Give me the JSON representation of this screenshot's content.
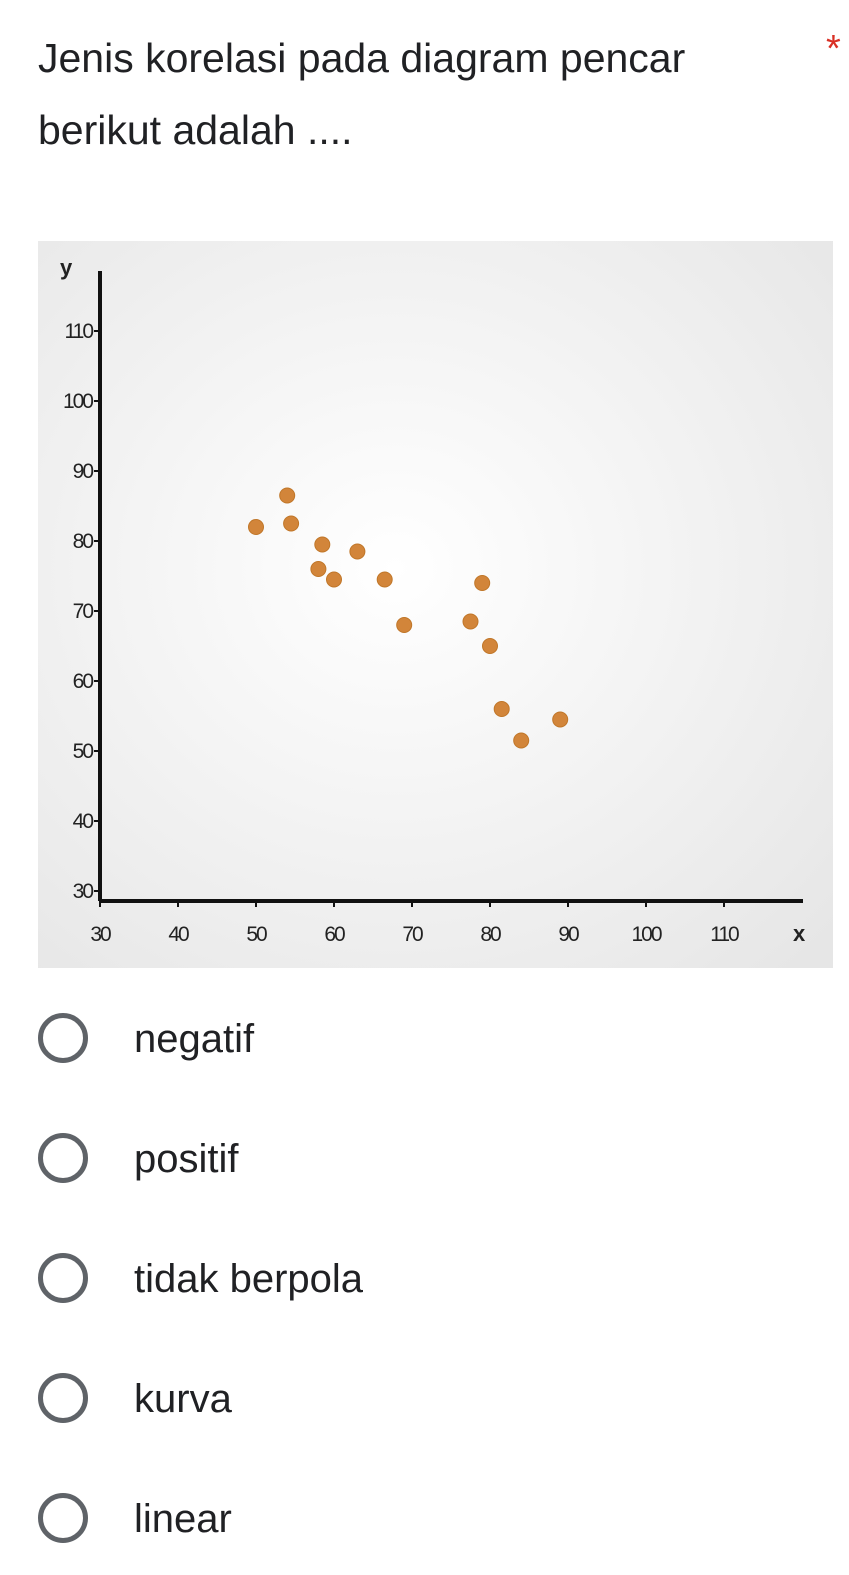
{
  "question": {
    "text": "Jenis korelasi pada diagram pencar berikut  adalah ....",
    "required_mark": "*"
  },
  "chart_data": {
    "type": "scatter",
    "title": "",
    "xlabel": "x",
    "ylabel": "y",
    "xlim": [
      30,
      120
    ],
    "ylim": [
      30,
      115
    ],
    "x_ticks": [
      30,
      40,
      50,
      60,
      70,
      80,
      90,
      100,
      110
    ],
    "y_ticks": [
      30,
      40,
      50,
      60,
      70,
      80,
      90,
      100,
      110
    ],
    "grid": false,
    "marker_color": "#d2853a",
    "plot_background": "#f2f2f2",
    "points": [
      {
        "x": 50,
        "y": 82
      },
      {
        "x": 54,
        "y": 86.5
      },
      {
        "x": 54.5,
        "y": 82.5
      },
      {
        "x": 58,
        "y": 76
      },
      {
        "x": 58.5,
        "y": 79.5
      },
      {
        "x": 60,
        "y": 74.5
      },
      {
        "x": 63,
        "y": 78.5
      },
      {
        "x": 66.5,
        "y": 74.5
      },
      {
        "x": 69,
        "y": 68
      },
      {
        "x": 77.5,
        "y": 68.5
      },
      {
        "x": 79,
        "y": 74
      },
      {
        "x": 80,
        "y": 65
      },
      {
        "x": 81.5,
        "y": 56
      },
      {
        "x": 84,
        "y": 51.5
      },
      {
        "x": 89,
        "y": 54.5
      }
    ]
  },
  "options": [
    {
      "label": "negatif"
    },
    {
      "label": "positif"
    },
    {
      "label": "tidak berpola"
    },
    {
      "label": "kurva"
    },
    {
      "label": "linear"
    }
  ]
}
